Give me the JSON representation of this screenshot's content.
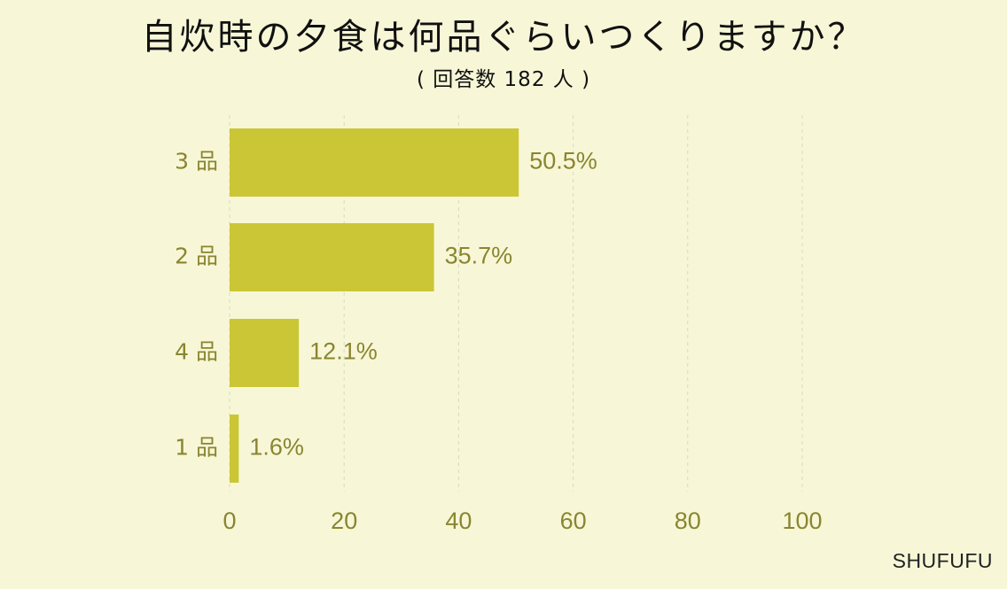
{
  "title": "自炊時の夕食は何品ぐらいつくりますか？",
  "subtitle": "( 回答数 182 人 )",
  "brand": "SHUFUFU",
  "colors": {
    "background": "#f7f7d7",
    "bar": "#cbc636",
    "text": "#8a8530",
    "grid": "#d9d9c4"
  },
  "chart_data": {
    "type": "bar",
    "orientation": "horizontal",
    "categories": [
      "3 品",
      "2 品",
      "4 品",
      "1 品"
    ],
    "values": [
      50.5,
      35.7,
      12.1,
      1.6
    ],
    "value_labels": [
      "50.5%",
      "35.7%",
      "12.1%",
      "1.6%"
    ],
    "xlim": [
      0,
      100
    ],
    "xticks": [
      0,
      20,
      40,
      60,
      80,
      100
    ],
    "xtick_labels": [
      "0",
      "20",
      "40",
      "60",
      "80",
      "100"
    ],
    "grid": true,
    "title": "自炊時の夕食は何品ぐらいつくりますか？",
    "subtitle": "( 回答数 182 人 )"
  }
}
